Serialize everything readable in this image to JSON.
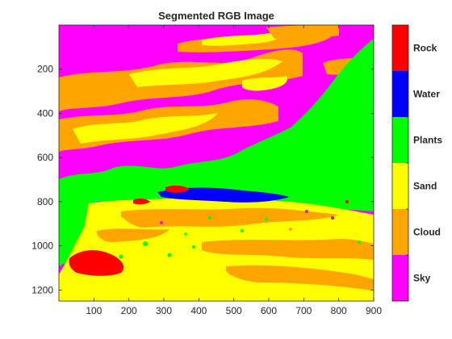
{
  "chart_data": {
    "type": "heatmap",
    "title": "Segmented RGB Image",
    "xlabel": "",
    "ylabel": "",
    "xlim": [
      0,
      900
    ],
    "ylim": [
      1250,
      0
    ],
    "x_ticks": [
      100,
      200,
      300,
      400,
      500,
      600,
      700,
      800,
      900
    ],
    "y_ticks": [
      200,
      400,
      600,
      800,
      1000,
      1200
    ],
    "colorbar": {
      "position": "right",
      "categories": [
        {
          "label": "Rock",
          "color": "#ff0000"
        },
        {
          "label": "Water",
          "color": "#0000ff"
        },
        {
          "label": "Plants",
          "color": "#00ff00"
        },
        {
          "label": "Sand",
          "color": "#ffff00"
        },
        {
          "label": "Cloud",
          "color": "#ffa500"
        },
        {
          "label": "Sky",
          "color": "#ff00ff"
        }
      ]
    }
  }
}
